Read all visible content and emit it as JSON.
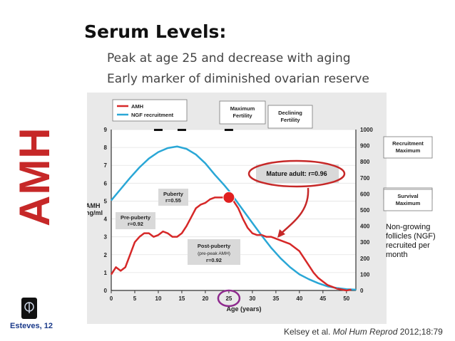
{
  "slide": {
    "title": "Serum Levels:",
    "bullets": [
      "Peak at age 25 and decrease with aging",
      "Early marker of diminished ovarian reserve"
    ],
    "vertical_label": "AMH",
    "logo_label": "Esteves, 12",
    "citation": {
      "authors": "Kelsey et al. ",
      "journal": "Mol Hum Reprod",
      "ref": " 2012;18:79"
    },
    "side_note": "Non-growing follicles (NGF) recruited per month"
  },
  "chart_data": {
    "type": "line",
    "xlabel": "Age (years)",
    "x_ticks": [
      0,
      5,
      10,
      15,
      20,
      25,
      30,
      35,
      40,
      45,
      50
    ],
    "xlim": [
      0,
      52
    ],
    "ylabel_left": "AMH ng/ml",
    "ylim_left": [
      0,
      9
    ],
    "y_ticks_left": [
      0,
      1,
      2,
      3,
      4,
      5,
      6,
      7,
      8,
      9
    ],
    "ylabel_right": "",
    "ylim_right": [
      0,
      1000
    ],
    "y_ticks_right": [
      0,
      100,
      200,
      300,
      400,
      500,
      600,
      700,
      800,
      900,
      1000
    ],
    "series": [
      {
        "name": "AMH",
        "color": "#d62828",
        "axis": "left",
        "x": [
          0,
          1,
          2,
          3,
          4,
          5,
          6,
          7,
          8,
          9,
          10,
          11,
          12,
          13,
          14,
          15,
          16,
          17,
          18,
          19,
          20,
          21,
          22,
          23,
          24,
          25,
          26,
          27,
          28,
          29,
          30,
          31,
          32,
          33,
          34,
          35,
          36,
          37,
          38,
          39,
          40,
          41,
          42,
          43,
          44,
          45,
          46,
          47,
          48,
          49,
          50,
          51
        ],
        "values": [
          0.9,
          1.3,
          1.1,
          1.3,
          2.0,
          2.7,
          3.0,
          3.2,
          3.2,
          3.0,
          3.1,
          3.3,
          3.2,
          3.0,
          3.0,
          3.2,
          3.6,
          4.1,
          4.6,
          4.8,
          4.9,
          5.1,
          5.2,
          5.2,
          5.2,
          5.2,
          5.0,
          4.6,
          4.0,
          3.5,
          3.2,
          3.1,
          3.1,
          3.0,
          3.0,
          2.9,
          2.8,
          2.7,
          2.6,
          2.4,
          2.2,
          1.8,
          1.4,
          1.0,
          0.7,
          0.5,
          0.3,
          0.2,
          0.1,
          0.05,
          0.0,
          0.05
        ]
      },
      {
        "name": "NGF recruitment",
        "color": "#2aa7d6",
        "axis": "right",
        "x": [
          0,
          2,
          4,
          6,
          8,
          10,
          12,
          14,
          16,
          18,
          20,
          22,
          24,
          25,
          26,
          28,
          30,
          32,
          34,
          36,
          38,
          40,
          42,
          44,
          46,
          48,
          50,
          52
        ],
        "values": [
          560,
          630,
          700,
          765,
          820,
          860,
          885,
          895,
          880,
          845,
          790,
          720,
          655,
          620,
          580,
          500,
          420,
          340,
          265,
          200,
          145,
          100,
          70,
          45,
          25,
          15,
          8,
          5
        ]
      }
    ],
    "peak_marker": {
      "x": 25,
      "y": 5.2
    },
    "annotations": {
      "maximum_fertility": "Maximum Fertility",
      "declining_fertility": "Declining Fertility",
      "mature_adult": "Mature adult: r=0.96",
      "puberty": "Puberty r=0.55",
      "pre_puberty": "Pre-puberty r=0.92",
      "post_puberty": "Post-puberty",
      "post_puberty_sub": "(pre-peak AMH)",
      "post_puberty_r": "r=0.92",
      "recruitment_max": "Recruitment Maximum",
      "survival_max": "Survival Maximum"
    },
    "top_markers_x": [
      10,
      15,
      25
    ],
    "colors": {
      "panel": "#e9e9e9",
      "box": "#e0e0e0",
      "highlight": "#c62828"
    }
  }
}
